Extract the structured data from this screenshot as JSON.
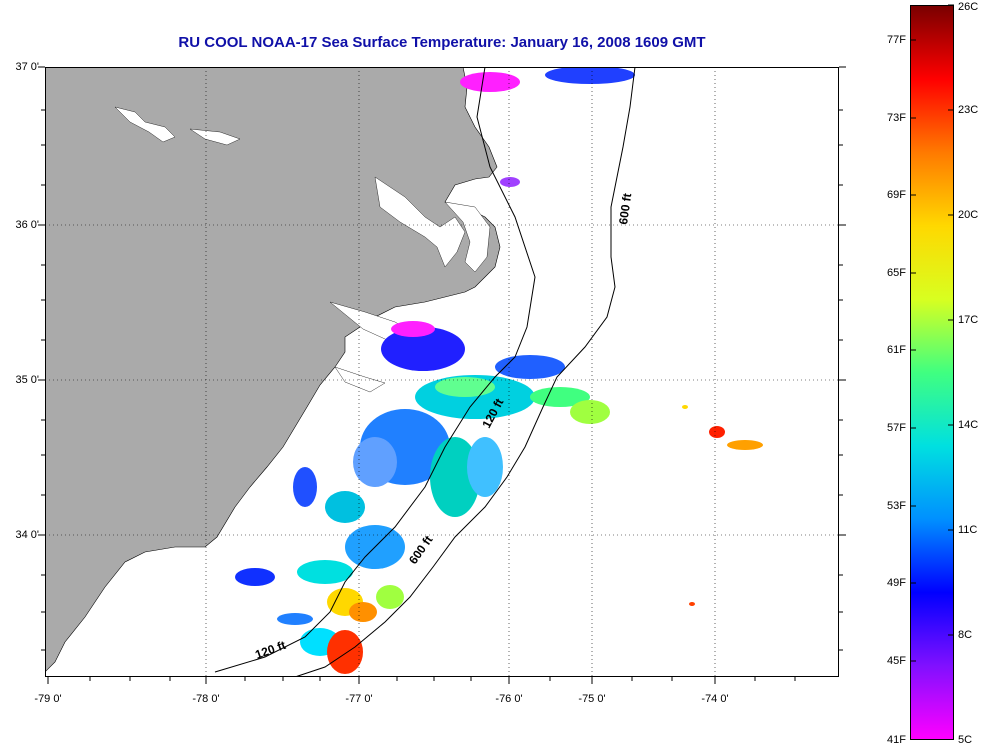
{
  "title": "RU COOL  NOAA-17  Sea Surface Temperature:  January 16, 2008 1609 GMT",
  "latitude_labels": [
    "37 0'",
    "36 0'",
    "35 0'",
    "34 0'"
  ],
  "longitude_labels": [
    "-79 0'",
    "-78 0'",
    "-77 0'",
    "-76 0'",
    "-75 0'",
    "-74 0'"
  ],
  "contours": [
    {
      "label": "600 ft"
    },
    {
      "label": "120 ft"
    },
    {
      "label": "120 ft"
    },
    {
      "label": "600 ft"
    }
  ],
  "colorbar": {
    "fahrenheit_labels": [
      "77F",
      "73F",
      "69F",
      "65F",
      "61F",
      "57F",
      "53F",
      "49F",
      "45F",
      "41F"
    ],
    "celsius_labels": [
      "26C",
      "23C",
      "20C",
      "17C",
      "14C",
      "11C",
      "8C",
      "5C"
    ],
    "colors": [
      "#7a0000",
      "#ff0000",
      "#ff7a00",
      "#ffd800",
      "#d8ff20",
      "#40ff80",
      "#00e0e0",
      "#0090ff",
      "#0000ff",
      "#8010ff",
      "#ff00ff"
    ]
  },
  "colors": {
    "land": "#aaaaaa",
    "title": "#1010a8"
  }
}
